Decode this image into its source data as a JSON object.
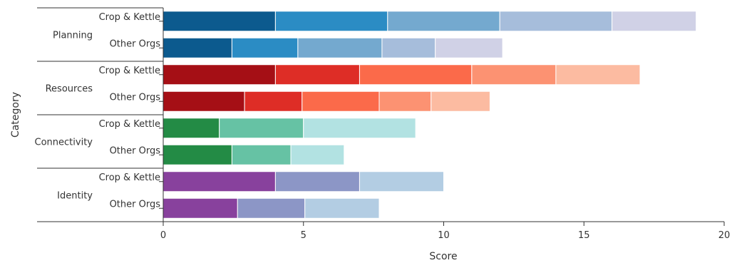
{
  "chart_data": {
    "type": "bar",
    "orientation": "horizontal",
    "stacked": true,
    "xlabel": "Score",
    "ylabel": "Category",
    "xlim": [
      0,
      20
    ],
    "xticks": [
      "0",
      "5",
      "10",
      "15",
      "20"
    ],
    "grid": false,
    "legend": "none",
    "groups": [
      {
        "category": "Planning",
        "colors": [
          "#0c5a8e",
          "#2b8cc4",
          "#74a9cf",
          "#a6bddb",
          "#d0d1e6"
        ],
        "rows": [
          {
            "label": "Crop & Kettle",
            "segments": [
              4,
              4,
              4,
              4,
              3
            ]
          },
          {
            "label": "Other Orgs",
            "segments": [
              2.45,
              2.35,
              3.0,
              1.9,
              2.4
            ]
          }
        ]
      },
      {
        "category": "Resources",
        "colors": [
          "#a50f15",
          "#de2d26",
          "#fb6a4a",
          "#fc9272",
          "#fcbba1"
        ],
        "rows": [
          {
            "label": "Crop & Kettle",
            "segments": [
              4,
              3,
              4,
              3,
              3
            ]
          },
          {
            "label": "Other Orgs",
            "segments": [
              2.9,
              2.05,
              2.75,
              1.85,
              2.1
            ]
          }
        ]
      },
      {
        "category": "Connectivity",
        "colors": [
          "#238b45",
          "#66c2a4",
          "#b2e2e2"
        ],
        "rows": [
          {
            "label": "Crop & Kettle",
            "segments": [
              2,
              3,
              4
            ]
          },
          {
            "label": "Other Orgs",
            "segments": [
              2.45,
              2.1,
              1.9
            ]
          }
        ]
      },
      {
        "category": "Identity",
        "colors": [
          "#88419d",
          "#8c96c6",
          "#b3cde3"
        ],
        "rows": [
          {
            "label": "Crop & Kettle",
            "segments": [
              4,
              3,
              3
            ]
          },
          {
            "label": "Other Orgs",
            "segments": [
              2.65,
              2.4,
              2.65
            ]
          }
        ]
      }
    ]
  }
}
